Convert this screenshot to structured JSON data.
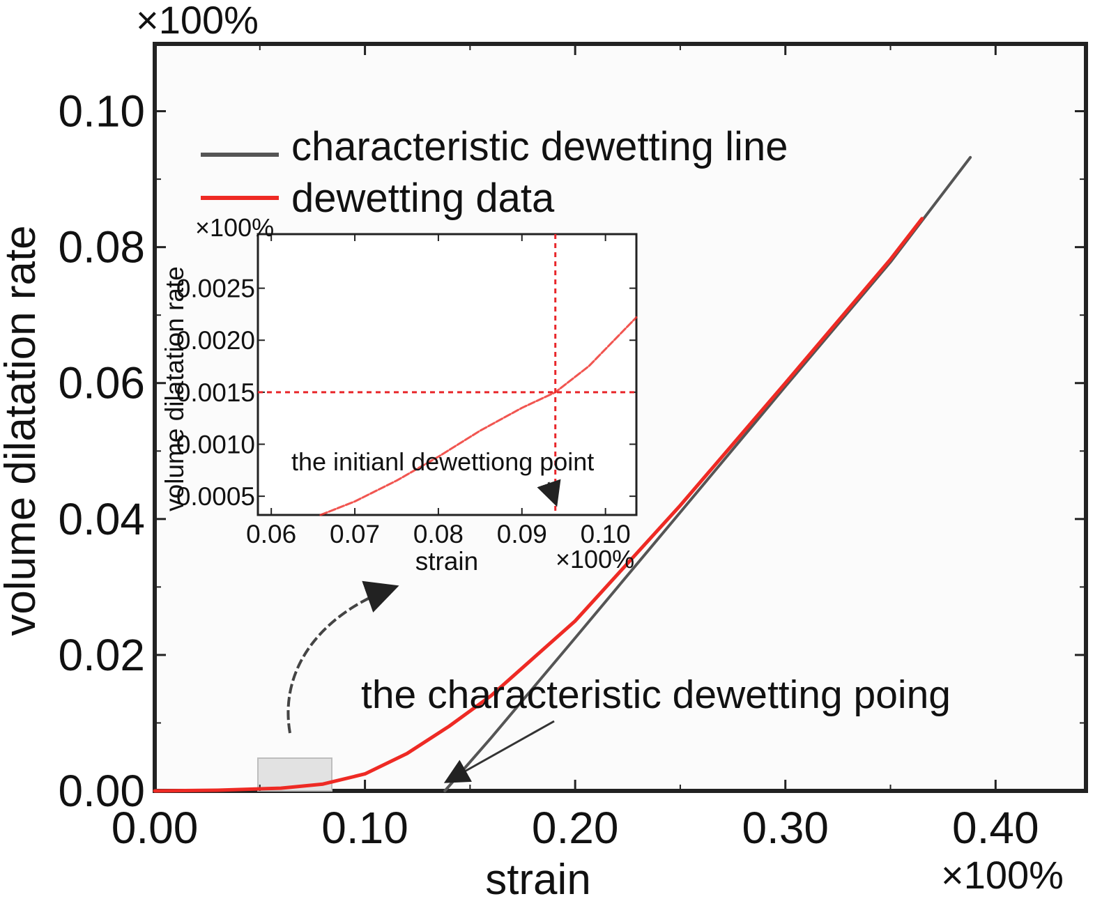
{
  "chart_data": {
    "type": "line",
    "title": "",
    "xlabel": "strain",
    "ylabel": "volume dilatation rate",
    "x_multiplier": "×100%",
    "y_multiplier": "×100%",
    "xlim": [
      0.0,
      0.443
    ],
    "ylim": [
      0.0,
      0.1099
    ],
    "x_ticks": [
      0.0,
      0.1,
      0.2,
      0.3,
      0.4
    ],
    "x_tick_labels": [
      "0.00",
      "0.10",
      "0.20",
      "0.30",
      "0.40"
    ],
    "y_ticks": [
      0.0,
      0.02,
      0.04,
      0.06,
      0.08,
      0.1
    ],
    "y_tick_labels": [
      "0.00",
      "0.02",
      "0.04",
      "0.06",
      "0.08",
      "0.10"
    ],
    "grid": false,
    "legend_position": "top-left",
    "series": [
      {
        "name": "characteristic dewetting line",
        "color": "#555555",
        "x": [
          0.138,
          0.16,
          0.2,
          0.25,
          0.3,
          0.35,
          0.388
        ],
        "y": [
          0.0,
          0.0078,
          0.0225,
          0.041,
          0.0595,
          0.0778,
          0.0932
        ]
      },
      {
        "name": "dewetting data",
        "color": "#ee2a24",
        "x": [
          0.0,
          0.03,
          0.06,
          0.08,
          0.1,
          0.12,
          0.14,
          0.16,
          0.18,
          0.2,
          0.22,
          0.25,
          0.3,
          0.35,
          0.365
        ],
        "y": [
          0.0,
          0.0001,
          0.0004,
          0.001,
          0.0025,
          0.0055,
          0.0095,
          0.014,
          0.0195,
          0.025,
          0.0318,
          0.042,
          0.06,
          0.0782,
          0.0842
        ]
      }
    ],
    "annotations": [
      {
        "text": "the characteristic dewetting poing",
        "x": 0.138,
        "y": 0.0
      }
    ],
    "inset": {
      "type": "line",
      "xlabel": "strain",
      "ylabel": "volume dilatation rate",
      "x_multiplier": "×100%",
      "y_multiplier": "×100%",
      "xlim": [
        0.0584,
        0.1037
      ],
      "ylim": [
        0.00032,
        0.00302
      ],
      "x_ticks": [
        0.06,
        0.07,
        0.08,
        0.09,
        0.1
      ],
      "x_tick_labels": [
        "0.06",
        "0.07",
        "0.08",
        "0.09",
        "0.10"
      ],
      "y_ticks": [
        0.0005,
        0.001,
        0.0015,
        0.002,
        0.0025
      ],
      "y_tick_labels": [
        "0.0005",
        "0.0010",
        "0.0015",
        "0.0020",
        "0.0025"
      ],
      "series": [
        {
          "color": "#ee2a24",
          "x": [
            0.0659,
            0.07,
            0.075,
            0.08,
            0.085,
            0.09,
            0.094,
            0.098,
            0.1037
          ],
          "y": [
            0.00032,
            0.00045,
            0.00065,
            0.00088,
            0.00113,
            0.00135,
            0.0015,
            0.00175,
            0.00222
          ]
        }
      ],
      "reference_lines": {
        "x": 0.094,
        "y": 0.0015,
        "color": "#e8262a"
      },
      "annotations": [
        {
          "text": "the initianl dewettiong point",
          "x": 0.094,
          "y": 0.00032
        }
      ]
    }
  }
}
